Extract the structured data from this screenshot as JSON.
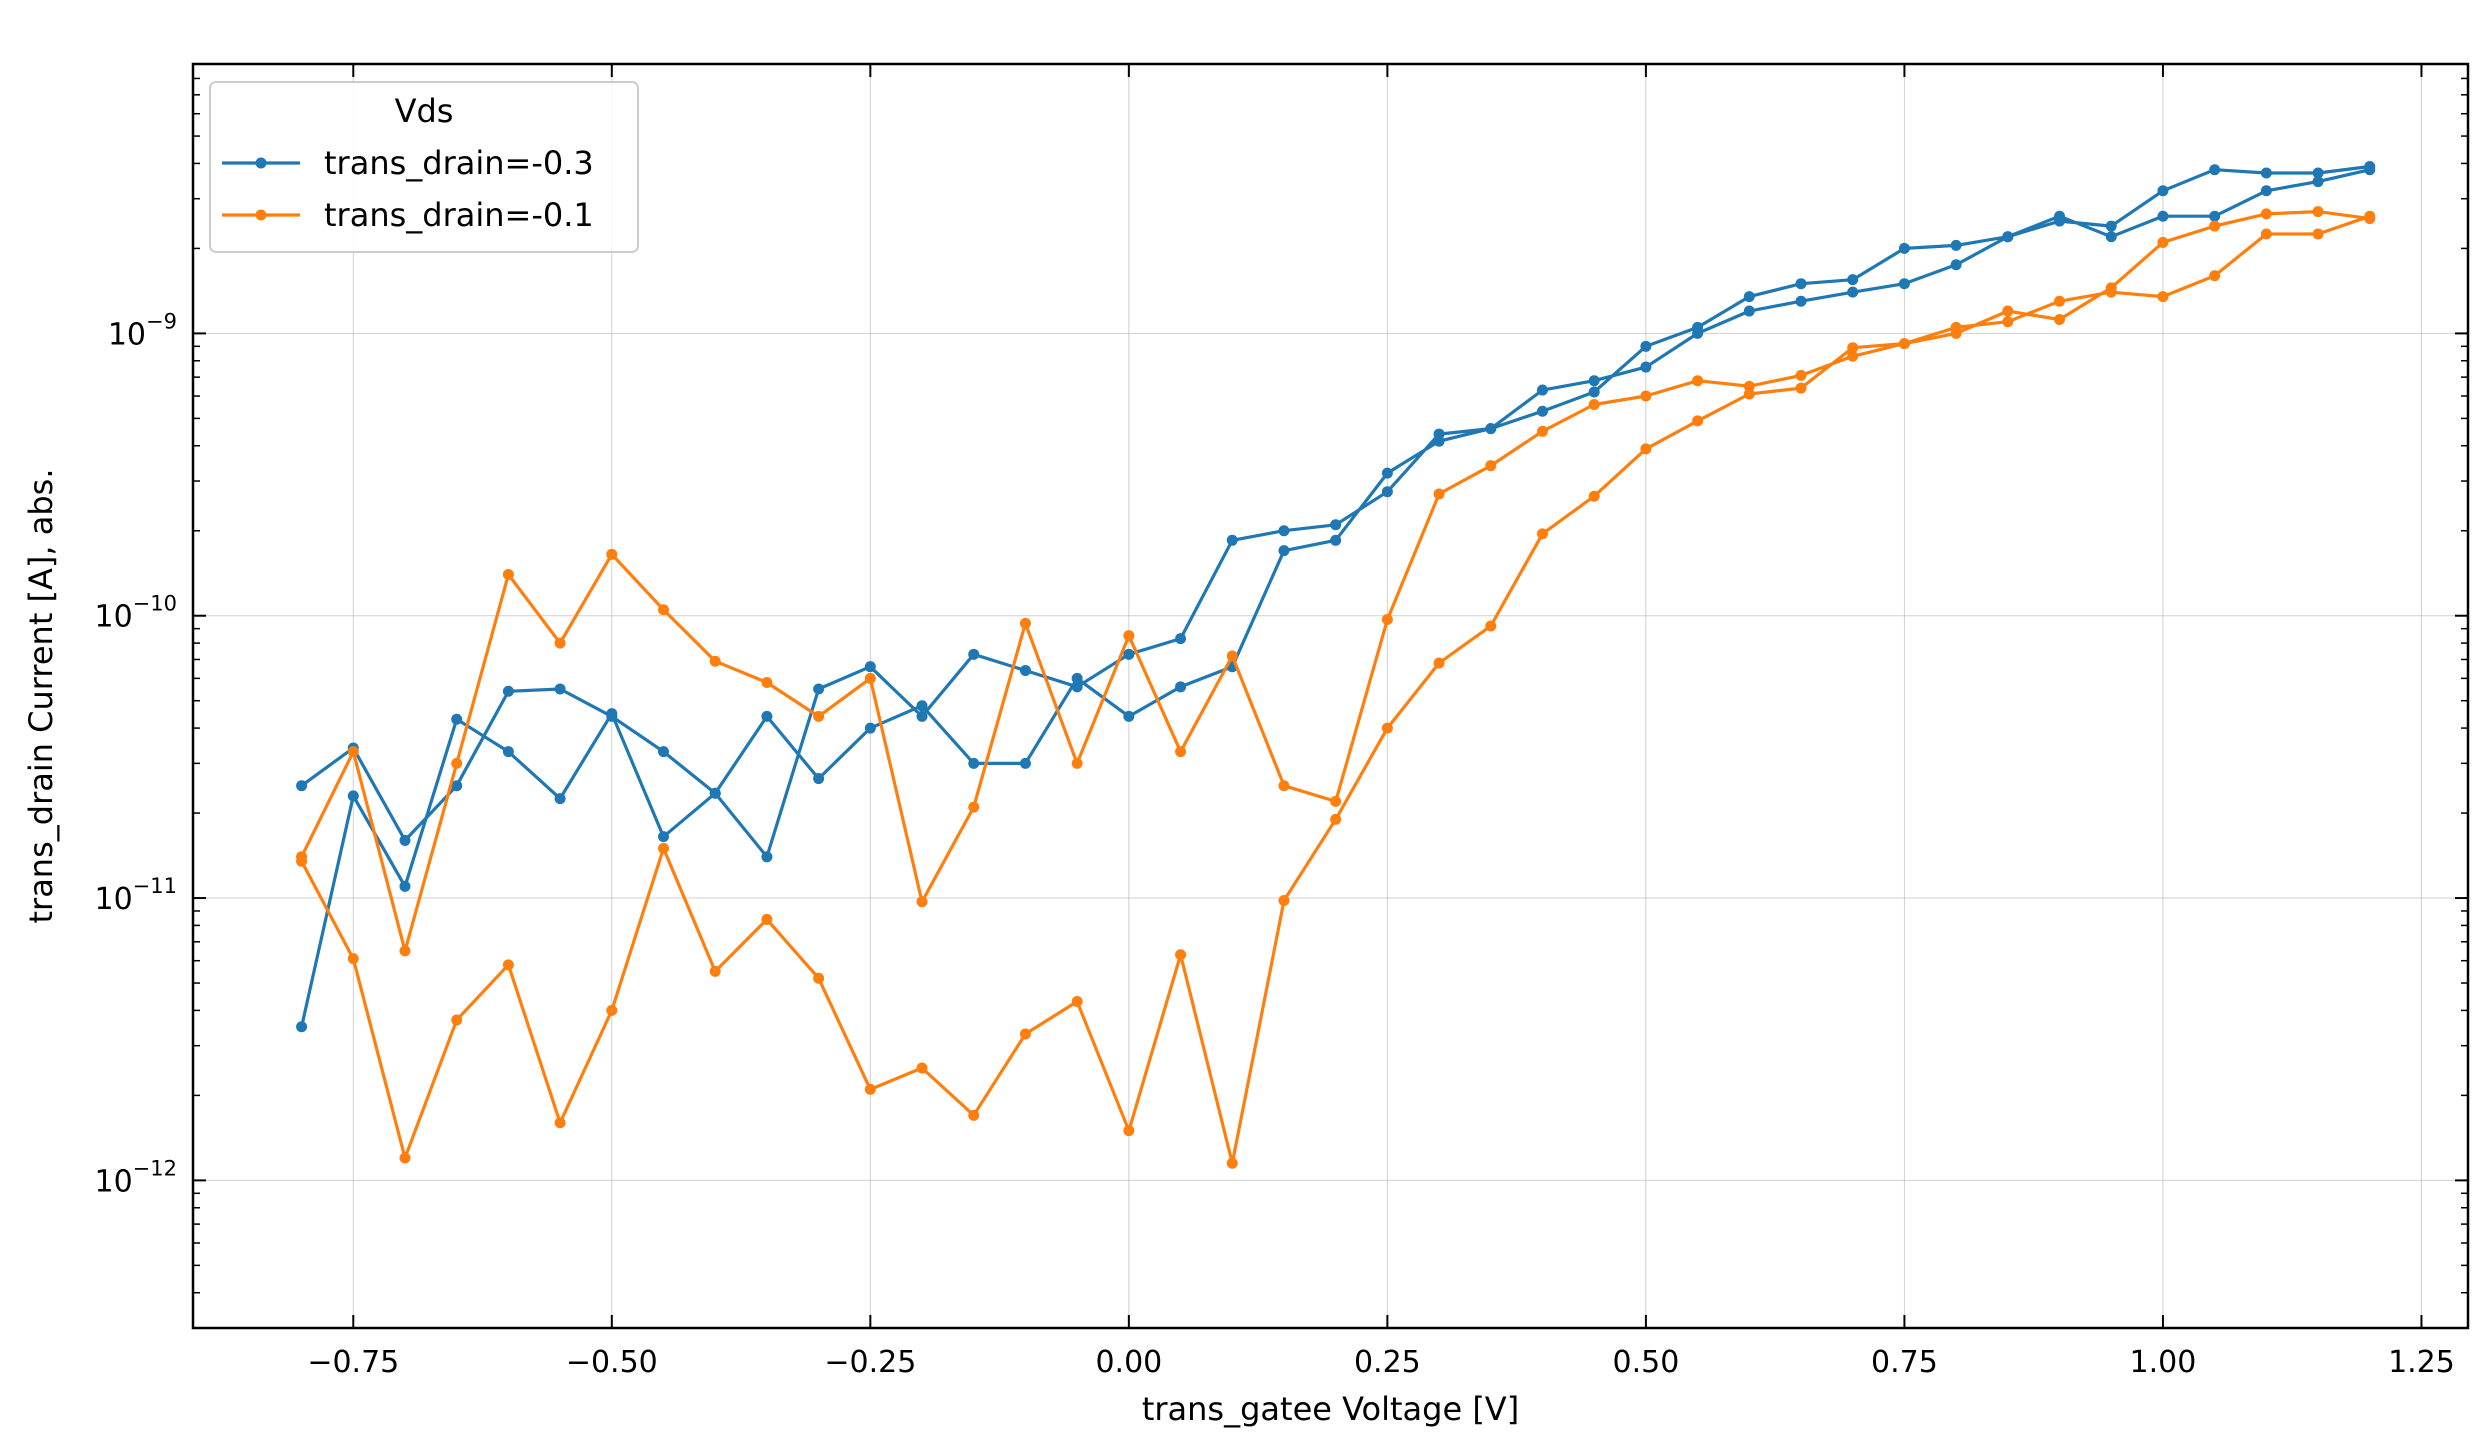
{
  "chart_data": {
    "type": "line",
    "xlabel": "trans_gatee Voltage [V]",
    "ylabel": "trans_drain Current [A], abs.",
    "yscale": "log",
    "xlim": [
      -0.905,
      1.295
    ],
    "ylim": [
      3e-13,
      9e-09
    ],
    "grid": true,
    "x_ticks": [
      -0.75,
      -0.5,
      -0.25,
      0.0,
      0.25,
      0.5,
      0.75,
      1.0,
      1.25
    ],
    "x_tick_labels": [
      "−0.75",
      "−0.50",
      "−0.25",
      "0.00",
      "0.25",
      "0.50",
      "0.75",
      "1.00",
      "1.25"
    ],
    "y_ticks": [
      1e-12,
      1e-11,
      1e-10,
      1e-09
    ],
    "y_tick_labels": [
      {
        "base": "10",
        "exp": "−12"
      },
      {
        "base": "10",
        "exp": "−11"
      },
      {
        "base": "10",
        "exp": "−10"
      },
      {
        "base": "10",
        "exp": "−9"
      }
    ],
    "legend": {
      "title": "Vds",
      "position": "top-left"
    },
    "series": [
      {
        "name": "trans_drain=-0.3",
        "color": "#1f77b4",
        "x": [
          -0.8,
          -0.75,
          -0.7,
          -0.65,
          -0.6,
          -0.55,
          -0.5,
          -0.45,
          -0.4,
          -0.35,
          -0.3,
          -0.25,
          -0.2,
          -0.15,
          -0.1,
          -0.05,
          0.0,
          0.05,
          0.1,
          0.15,
          0.2,
          0.25,
          0.3,
          0.35,
          0.4,
          0.45,
          0.5,
          0.55,
          0.6,
          0.65,
          0.7,
          0.75,
          0.8,
          0.85,
          0.9,
          0.95,
          1.0,
          1.05,
          1.1,
          1.15,
          1.2,
          1.2,
          1.15,
          1.1,
          1.05,
          1.0,
          0.95,
          0.9,
          0.85,
          0.8,
          0.75,
          0.7,
          0.65,
          0.6,
          0.55,
          0.5,
          0.45,
          0.4,
          0.35,
          0.3,
          0.25,
          0.2,
          0.15,
          0.1,
          0.05,
          0.0,
          -0.05,
          -0.1,
          -0.15,
          -0.2,
          -0.25,
          -0.3,
          -0.35,
          -0.4,
          -0.45,
          -0.5,
          -0.55,
          -0.6,
          -0.65,
          -0.7,
          -0.75,
          -0.8
        ],
        "y": [
          2.5e-11,
          3.4e-11,
          1.6e-11,
          2.5e-11,
          5.4e-11,
          5.5e-11,
          4.4e-11,
          3.3e-11,
          2.35e-11,
          1.4e-11,
          5.5e-11,
          6.6e-11,
          4.4e-11,
          7.3e-11,
          6.4e-11,
          5.6e-11,
          7.3e-11,
          8.3e-11,
          1.85e-10,
          2e-10,
          2.1e-10,
          2.75e-10,
          4.4e-10,
          4.6e-10,
          6.3e-10,
          6.8e-10,
          7.6e-10,
          1e-09,
          1.2e-09,
          1.3e-09,
          1.4e-09,
          1.5e-09,
          1.75e-09,
          2.2e-09,
          2.5e-09,
          2.4e-09,
          3.2e-09,
          3.8e-09,
          3.7e-09,
          3.7e-09,
          3.9e-09,
          3.8e-09,
          3.45e-09,
          3.2e-09,
          2.6e-09,
          2.6e-09,
          2.2e-09,
          2.6e-09,
          2.2e-09,
          2.05e-09,
          2e-09,
          1.55e-09,
          1.5e-09,
          1.35e-09,
          1.05e-09,
          9e-10,
          6.2e-10,
          5.3e-10,
          4.6e-10,
          4.15e-10,
          3.2e-10,
          1.85e-10,
          1.7e-10,
          6.6e-11,
          5.6e-11,
          4.4e-11,
          6e-11,
          3e-11,
          3e-11,
          4.8e-11,
          4e-11,
          2.65e-11,
          4.4e-11,
          2.35e-11,
          1.65e-11,
          4.5e-11,
          2.25e-11,
          3.3e-11,
          4.3e-11,
          1.1e-11,
          2.3e-11,
          3.5e-12
        ]
      },
      {
        "name": "trans_drain=-0.1",
        "color": "#ff7f0e",
        "x": [
          -0.8,
          -0.75,
          -0.7,
          -0.65,
          -0.6,
          -0.55,
          -0.5,
          -0.45,
          -0.4,
          -0.35,
          -0.3,
          -0.25,
          -0.2,
          -0.15,
          -0.1,
          -0.05,
          0.0,
          0.05,
          0.1,
          0.15,
          0.2,
          0.25,
          0.3,
          0.35,
          0.4,
          0.45,
          0.5,
          0.55,
          0.6,
          0.65,
          0.7,
          0.75,
          0.8,
          0.85,
          0.9,
          0.95,
          1.0,
          1.05,
          1.1,
          1.15,
          1.2,
          1.2,
          1.15,
          1.1,
          1.05,
          1.0,
          0.95,
          0.9,
          0.85,
          0.8,
          0.75,
          0.7,
          0.65,
          0.6,
          0.55,
          0.5,
          0.45,
          0.4,
          0.35,
          0.3,
          0.25,
          0.2,
          0.15,
          0.1,
          0.05,
          0.0,
          -0.05,
          -0.1,
          -0.15,
          -0.2,
          -0.25,
          -0.3,
          -0.35,
          -0.4,
          -0.45,
          -0.5,
          -0.55,
          -0.6,
          -0.65,
          -0.7,
          -0.75,
          -0.8
        ],
        "y": [
          1.4e-11,
          3.3e-11,
          6.5e-12,
          3e-11,
          1.4e-10,
          8e-11,
          1.65e-10,
          1.05e-10,
          6.9e-11,
          5.8e-11,
          4.4e-11,
          6e-11,
          9.7e-12,
          2.1e-11,
          9.4e-11,
          3e-11,
          8.5e-11,
          3.3e-11,
          7.2e-11,
          2.5e-11,
          2.2e-11,
          9.7e-11,
          2.7e-10,
          3.4e-10,
          4.5e-10,
          5.6e-10,
          6e-10,
          6.8e-10,
          6.5e-10,
          7.1e-10,
          8.3e-10,
          9.2e-10,
          1.05e-09,
          1.1e-09,
          1.3e-09,
          1.4e-09,
          1.35e-09,
          1.6e-09,
          2.25e-09,
          2.25e-09,
          2.6e-09,
          2.55e-09,
          2.7e-09,
          2.65e-09,
          2.4e-09,
          2.1e-09,
          1.45e-09,
          1.12e-09,
          1.2e-09,
          1e-09,
          9.2e-10,
          8.9e-10,
          6.4e-10,
          6.1e-10,
          4.9e-10,
          3.9e-10,
          2.65e-10,
          1.95e-10,
          9.2e-11,
          6.8e-11,
          4e-11,
          1.9e-11,
          9.8e-12,
          1.15e-12,
          6.3e-12,
          1.5e-12,
          4.3e-12,
          3.3e-12,
          1.7e-12,
          2.5e-12,
          2.1e-12,
          5.2e-12,
          8.4e-12,
          5.5e-12,
          1.5e-11,
          4e-12,
          1.6e-12,
          5.8e-12,
          3.7e-12,
          1.2e-12,
          6.1e-12,
          1.35e-11
        ]
      }
    ]
  }
}
